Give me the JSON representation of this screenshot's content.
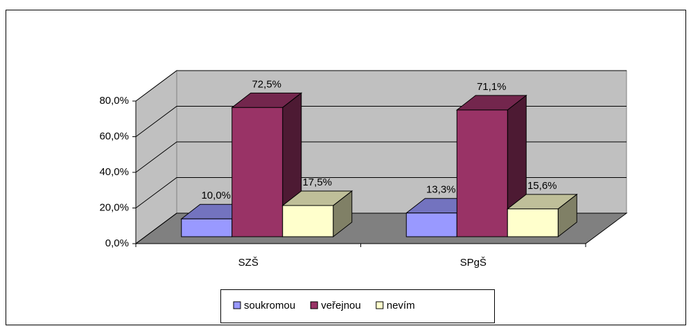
{
  "chart_data": {
    "type": "bar3d",
    "categories": [
      "SZŠ",
      "SPgŠ"
    ],
    "series": [
      {
        "name": "soukromou",
        "color": "#9999ff",
        "values": [
          10.0,
          13.3
        ],
        "value_labels": [
          "10,0%",
          "13,3%"
        ]
      },
      {
        "name": "veřejnou",
        "color": "#993366",
        "values": [
          72.5,
          71.1
        ],
        "value_labels": [
          "72,5%",
          "71,1%"
        ]
      },
      {
        "name": "nevím",
        "color": "#ffffcc",
        "values": [
          17.5,
          15.6
        ],
        "value_labels": [
          "17,5%",
          "15,6%"
        ]
      }
    ],
    "ylim": [
      0,
      80
    ],
    "yticks": [
      {
        "value": 0,
        "label": "0,0%"
      },
      {
        "value": 20,
        "label": "20,0%"
      },
      {
        "value": 40,
        "label": "40,0%"
      },
      {
        "value": 60,
        "label": "60,0%"
      },
      {
        "value": 80,
        "label": "80,0%"
      }
    ],
    "grid": true,
    "legend": "bottom"
  }
}
